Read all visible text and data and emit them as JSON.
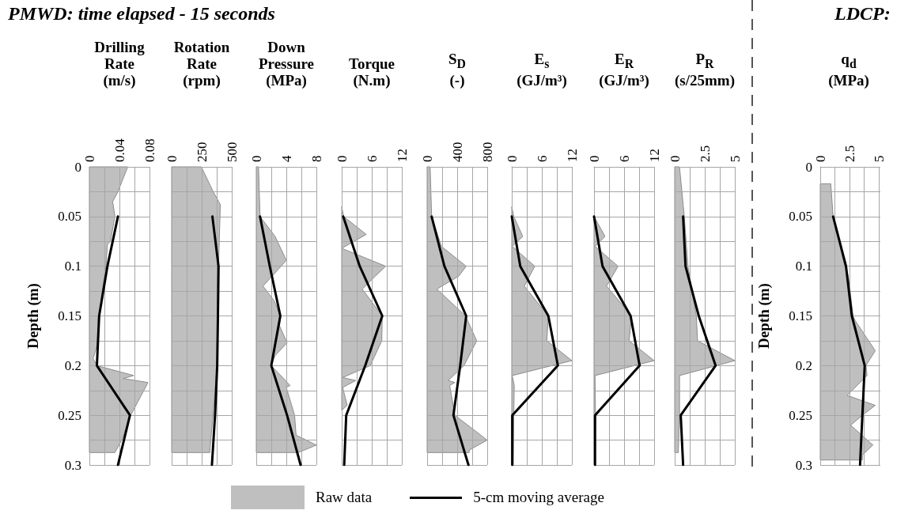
{
  "chart_data": [
    {
      "type": "line",
      "orientation": "horizontal",
      "title": "PMWD: time elapsed - 15 seconds",
      "xlabel": "Drilling Rate (m/s)",
      "ylabel": "Depth (m)",
      "legend": "bottom",
      "grid": true,
      "xlim": [
        0,
        0.08
      ],
      "xticks": [
        0,
        {
          "value": 0.02,
          "label": null
        },
        0.04,
        {
          "value": 0.06,
          "label": null
        },
        0.08
      ],
      "ylim": [
        0.3,
        0
      ],
      "yticks": [
        0,
        {
          "value": 0.025,
          "label": null
        },
        0.05,
        {
          "value": 0.075,
          "label": null
        },
        0.1,
        {
          "value": 0.125,
          "label": null
        },
        0.15,
        {
          "value": 0.175,
          "label": null
        },
        0.2,
        {
          "value": 0.225,
          "label": null
        },
        0.25,
        {
          "value": 0.275,
          "label": null
        },
        0.3
      ],
      "series": [
        {
          "name": "Raw data",
          "type": "area",
          "color": "#bfbfbf",
          "x": [
            0,
            0.025,
            0.035,
            0.05,
            0.075,
            0.078,
            0.1,
            0.125,
            0.15,
            0.175,
            0.193,
            0.2,
            0.21,
            0.213,
            0.217,
            0.25,
            0.275,
            0.2875
          ],
          "values": [
            0.051,
            0.038,
            0.031,
            0.034,
            0.028,
            0.024,
            0.022,
            0.017,
            0.013,
            0.012,
            0.005,
            0.01,
            0.059,
            0.045,
            0.078,
            0.055,
            0.043,
            0.034
          ]
        },
        {
          "name": "5-cm moving average",
          "color": "#000000",
          "x": [
            0.05,
            0.1,
            0.15,
            0.2,
            0.25,
            0.3
          ],
          "values": [
            0.038,
            0.024,
            0.013,
            0.01,
            0.054,
            0.038
          ]
        }
      ]
    },
    {
      "type": "line",
      "orientation": "horizontal",
      "xlabel": "Rotation Rate (rpm)",
      "grid": true,
      "tick_labels": "x",
      "xlim": [
        0,
        500
      ],
      "xticks": [
        0,
        {
          "value": 125,
          "label": null
        },
        250,
        {
          "value": 375,
          "label": null
        },
        500
      ],
      "ylim": [
        0.3,
        0
      ],
      "yticks": [
        0,
        {
          "value": 0.025,
          "label": null
        },
        0.05,
        {
          "value": 0.075,
          "label": null
        },
        0.1,
        {
          "value": 0.125,
          "label": null
        },
        0.15,
        {
          "value": 0.175,
          "label": null
        },
        0.2,
        {
          "value": 0.225,
          "label": null
        },
        0.25,
        {
          "value": 0.275,
          "label": null
        },
        0.3
      ],
      "series": [
        {
          "type": "area",
          "color": "#bfbfbf",
          "x": [
            0,
            0.025,
            0.038,
            0.1,
            0.2,
            0.2875
          ],
          "values": [
            247,
            346,
            405,
            390,
            379,
            317
          ]
        },
        {
          "color": "#000000",
          "x": [
            0.05,
            0.1,
            0.15,
            0.2,
            0.25,
            0.3
          ],
          "values": [
            339,
            390,
            385,
            379,
            361,
            335
          ]
        }
      ]
    },
    {
      "type": "line",
      "orientation": "horizontal",
      "xlabel": "Down Pressure (MPa)",
      "grid": true,
      "tick_labels": "x",
      "xlim": [
        0,
        8
      ],
      "xticks": [
        0,
        {
          "value": 2,
          "label": null
        },
        4,
        {
          "value": 6,
          "label": null
        },
        8
      ],
      "ylim": [
        0.3,
        0
      ],
      "yticks": [
        0,
        {
          "value": 0.025,
          "label": null
        },
        0.05,
        {
          "value": 0.075,
          "label": null
        },
        0.1,
        {
          "value": 0.125,
          "label": null
        },
        0.15,
        {
          "value": 0.175,
          "label": null
        },
        0.2,
        {
          "value": 0.225,
          "label": null
        },
        0.25,
        {
          "value": 0.275,
          "label": null
        },
        0.3
      ],
      "series": [
        {
          "type": "area",
          "color": "#bfbfbf",
          "x": [
            0,
            0.05,
            0.07,
            0.094,
            0.105,
            0.12,
            0.135,
            0.15,
            0.16,
            0.177,
            0.19,
            0.2,
            0.22,
            0.222,
            0.25,
            0.27,
            0.28,
            0.2875
          ],
          "values": [
            0.3,
            0.5,
            2.5,
            4.0,
            2.7,
            0.9,
            2.4,
            3.2,
            3.1,
            4.1,
            2.5,
            2.0,
            4.5,
            4.0,
            5.1,
            5.3,
            8.0,
            5.6
          ]
        },
        {
          "color": "#000000",
          "x": [
            0.05,
            0.1,
            0.15,
            0.2,
            0.25,
            0.3
          ],
          "values": [
            0.5,
            1.8,
            3.2,
            2.0,
            4.1,
            5.9
          ]
        }
      ]
    },
    {
      "type": "line",
      "orientation": "horizontal",
      "xlabel": "Torque (N.m)",
      "grid": true,
      "tick_labels": "x",
      "xlim": [
        0,
        12
      ],
      "xticks": [
        0,
        {
          "value": 3,
          "label": null
        },
        6,
        {
          "value": 9,
          "label": null
        },
        12
      ],
      "ylim": [
        0.3,
        0
      ],
      "yticks": [
        0,
        {
          "value": 0.025,
          "label": null
        },
        0.05,
        {
          "value": 0.075,
          "label": null
        },
        0.1,
        {
          "value": 0.125,
          "label": null
        },
        0.15,
        {
          "value": 0.175,
          "label": null
        },
        0.2,
        {
          "value": 0.225,
          "label": null
        },
        0.25,
        {
          "value": 0.275,
          "label": null
        },
        0.3
      ],
      "series": [
        {
          "type": "area",
          "color": "#bfbfbf",
          "x": [
            0.04,
            0.05,
            0.068,
            0.082,
            0.1,
            0.11,
            0.123,
            0.15,
            0.175,
            0.2,
            0.212,
            0.215,
            0.222,
            0.232,
            0.24,
            0.245
          ],
          "values": [
            0,
            0.4,
            4.9,
            0,
            8.8,
            6.7,
            4.1,
            8.1,
            8.0,
            5.7,
            0.2,
            2.8,
            0.2,
            0.7,
            1.1,
            0
          ]
        },
        {
          "color": "#000000",
          "x": [
            0.05,
            0.1,
            0.15,
            0.2,
            0.25,
            0.3
          ],
          "values": [
            0.3,
            3.6,
            8.1,
            4.7,
            0.9,
            0.5
          ]
        }
      ]
    },
    {
      "type": "line",
      "orientation": "horizontal",
      "xlabel": "S$_{D}$ (-)",
      "grid": true,
      "tick_labels": "x",
      "xlim": [
        0,
        800
      ],
      "xticks": [
        0,
        {
          "value": 200,
          "label": null
        },
        400,
        {
          "value": 600,
          "label": null
        },
        800
      ],
      "ylim": [
        0.3,
        0
      ],
      "yticks": [
        0,
        {
          "value": 0.025,
          "label": null
        },
        0.05,
        {
          "value": 0.075,
          "label": null
        },
        0.1,
        {
          "value": 0.125,
          "label": null
        },
        0.15,
        {
          "value": 0.175,
          "label": null
        },
        0.2,
        {
          "value": 0.225,
          "label": null
        },
        0.25,
        {
          "value": 0.275,
          "label": null
        },
        0.3
      ],
      "series": [
        {
          "type": "area",
          "color": "#bfbfbf",
          "x": [
            0,
            0.05,
            0.08,
            0.1,
            0.11,
            0.123,
            0.15,
            0.175,
            0.2,
            0.215,
            0.217,
            0.22,
            0.25,
            0.275,
            0.285,
            0.2875
          ],
          "values": [
            40,
            60,
            190,
            520,
            420,
            130,
            510,
            660,
            490,
            280,
            370,
            300,
            370,
            800,
            560,
            560
          ]
        },
        {
          "color": "#000000",
          "x": [
            0.05,
            0.1,
            0.15,
            0.2,
            0.25,
            0.3
          ],
          "values": [
            60,
            230,
            520,
            440,
            350,
            550
          ]
        }
      ]
    },
    {
      "type": "line",
      "orientation": "horizontal",
      "xlabel": "E$_{s}$ (GJ/m³)",
      "grid": true,
      "tick_labels": "x",
      "xlim": [
        0,
        12
      ],
      "xticks": [
        0,
        {
          "value": 3,
          "label": null
        },
        6,
        {
          "value": 9,
          "label": null
        },
        12
      ],
      "ylim": [
        0.3,
        0
      ],
      "yticks": [
        0,
        {
          "value": 0.025,
          "label": null
        },
        0.05,
        {
          "value": 0.075,
          "label": null
        },
        0.1,
        {
          "value": 0.125,
          "label": null
        },
        0.15,
        {
          "value": 0.175,
          "label": null
        },
        0.2,
        {
          "value": 0.225,
          "label": null
        },
        0.25,
        {
          "value": 0.275,
          "label": null
        },
        0.3
      ],
      "series": [
        {
          "type": "area",
          "color": "#bfbfbf",
          "x": [
            0.04,
            0.05,
            0.07,
            0.08,
            0.1,
            0.12,
            0.15,
            0.175,
            0.195,
            0.21,
            0.22,
            0.25,
            0.3
          ],
          "values": [
            0,
            0.4,
            2.2,
            0.1,
            4.6,
            2.5,
            7.3,
            7.0,
            12,
            0.1,
            0.5,
            0.4,
            0.3
          ]
        },
        {
          "color": "#000000",
          "x": [
            0.05,
            0.1,
            0.15,
            0.2,
            0.25,
            0.3
          ],
          "values": [
            0,
            1.7,
            7.3,
            9.2,
            0.1,
            0.1
          ]
        }
      ]
    },
    {
      "type": "line",
      "orientation": "horizontal",
      "xlabel": "E$_{R}$ (GJ/m³)",
      "grid": true,
      "tick_labels": "x",
      "xlim": [
        0,
        12
      ],
      "xticks": [
        0,
        {
          "value": 3,
          "label": null
        },
        6,
        {
          "value": 9,
          "label": null
        },
        12
      ],
      "ylim": [
        0.3,
        0
      ],
      "yticks": [
        0,
        {
          "value": 0.025,
          "label": null
        },
        0.05,
        {
          "value": 0.075,
          "label": null
        },
        0.1,
        {
          "value": 0.125,
          "label": null
        },
        0.15,
        {
          "value": 0.175,
          "label": null
        },
        0.2,
        {
          "value": 0.225,
          "label": null
        },
        0.25,
        {
          "value": 0.275,
          "label": null
        },
        0.3
      ],
      "series": [
        {
          "type": "area",
          "color": "#bfbfbf",
          "x": [
            0.05,
            0.07,
            0.08,
            0.1,
            0.12,
            0.15,
            0.175,
            0.195,
            0.21,
            0.25,
            0.3
          ],
          "values": [
            0,
            2.2,
            0.2,
            4.8,
            2.5,
            7.5,
            7.0,
            12,
            0.2,
            0.3,
            0.2
          ]
        },
        {
          "color": "#000000",
          "x": [
            0.05,
            0.1,
            0.15,
            0.2,
            0.25,
            0.3
          ],
          "values": [
            0,
            1.7,
            7.3,
            9.1,
            0.2,
            0.2
          ]
        }
      ]
    },
    {
      "type": "line",
      "orientation": "horizontal",
      "xlabel": "P$_{R}$ (s/25mm)",
      "grid": true,
      "tick_labels": "x",
      "xlim": [
        0,
        5
      ],
      "xticks": [
        0,
        {
          "value": 1.25,
          "label": null
        },
        2.5,
        {
          "value": 3.75,
          "label": null
        },
        5
      ],
      "ylim": [
        0.3,
        0
      ],
      "yticks": [
        0,
        {
          "value": 0.025,
          "label": null
        },
        0.05,
        {
          "value": 0.075,
          "label": null
        },
        0.1,
        {
          "value": 0.125,
          "label": null
        },
        0.15,
        {
          "value": 0.175,
          "label": null
        },
        0.2,
        {
          "value": 0.225,
          "label": null
        },
        0.25,
        {
          "value": 0.275,
          "label": null
        },
        0.3
      ],
      "series": [
        {
          "type": "area",
          "color": "#bfbfbf",
          "x": [
            0,
            0.05,
            0.1,
            0.15,
            0.175,
            0.195,
            0.21,
            0.25,
            0.2875
          ],
          "values": [
            0.4,
            0.8,
            1.1,
            1.8,
            1.9,
            5,
            0.4,
            0.4,
            0.3
          ]
        },
        {
          "color": "#000000",
          "x": [
            0.05,
            0.1,
            0.15,
            0.2,
            0.25,
            0.3
          ],
          "values": [
            0.7,
            0.9,
            2.0,
            3.4,
            0.5,
            0.7
          ]
        }
      ]
    },
    {
      "type": "line",
      "orientation": "horizontal",
      "title": "LDCP:",
      "xlabel": "q$_{d}$ (MPa)",
      "ylabel": "Depth (m)",
      "grid": true,
      "xlim": [
        0,
        5
      ],
      "xticks": [
        0,
        {
          "value": 1.25,
          "label": null
        },
        2.5,
        {
          "value": 3.75,
          "label": null
        },
        5
      ],
      "ylim": [
        0.3,
        0
      ],
      "yticks": [
        0,
        {
          "value": 0.025,
          "label": null
        },
        0.05,
        {
          "value": 0.075,
          "label": null
        },
        0.1,
        {
          "value": 0.125,
          "label": null
        },
        0.15,
        {
          "value": 0.175,
          "label": null
        },
        0.2,
        {
          "value": 0.225,
          "label": null
        },
        0.25,
        {
          "value": 0.275,
          "label": null
        },
        0.3
      ],
      "series": [
        {
          "type": "area",
          "color": "#bfbfbf",
          "x": [
            0.017,
            0.05,
            0.1,
            0.11,
            0.15,
            0.155,
            0.185,
            0.2,
            0.21,
            0.23,
            0.24,
            0.25,
            0.26,
            0.28,
            0.29,
            0.295
          ],
          "values": [
            0.9,
            1.1,
            2.1,
            2.4,
            2.8,
            3.0,
            4.7,
            3.9,
            4.0,
            2.3,
            4.7,
            3.6,
            2.6,
            4.5,
            3.6,
            3.6
          ]
        },
        {
          "color": "#000000",
          "x": [
            0.05,
            0.1,
            0.15,
            0.2,
            0.25,
            0.3
          ],
          "values": [
            1.1,
            2.2,
            2.7,
            3.8,
            3.6,
            3.4
          ]
        }
      ]
    }
  ]
}
